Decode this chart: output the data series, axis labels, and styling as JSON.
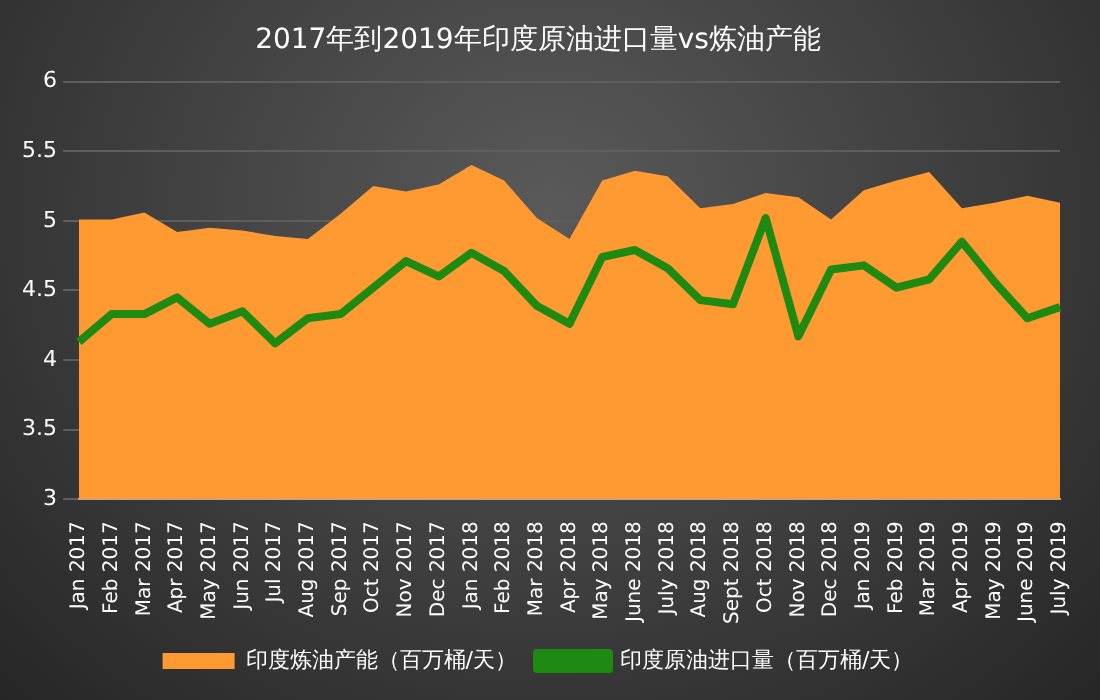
{
  "chart_data": {
    "type": "line",
    "title": "2017年到2019年印度原油进口量vs炼油产能",
    "categories": [
      "Jan 2017",
      "Feb 2017",
      "Mar 2017",
      "Apr 2017",
      "May 2017",
      "Jun 2017",
      "Jul 2017",
      "Aug 2017",
      "Sep 2017",
      "Oct 2017",
      "Nov 2017",
      "Dec 2017",
      "Jan 2018",
      "Feb 2018",
      "Mar 2018",
      "Apr 2018",
      "May 2018",
      "June 2018",
      "July 2018",
      "Aug 2018",
      "Sept 2018",
      "Oct 2018",
      "Nov 2018",
      "Dec 2018",
      "Jan 2019",
      "Feb 2019",
      "Mar 2019",
      "Apr 2019",
      "May 2019",
      "June 2019",
      "July 2019"
    ],
    "series": [
      {
        "name": "印度炼油产能（百万桶/天）",
        "type": "area",
        "color": "#ff9a33",
        "values": [
          5.01,
          5.01,
          5.06,
          4.92,
          4.95,
          4.93,
          4.89,
          4.87,
          5.05,
          5.25,
          5.21,
          5.26,
          5.4,
          5.29,
          5.02,
          4.87,
          5.29,
          5.36,
          5.32,
          5.09,
          5.12,
          5.2,
          5.17,
          5.01,
          5.22,
          5.29,
          5.35,
          5.09,
          5.13,
          5.18,
          5.13
        ]
      },
      {
        "name": "印度原油进口量（百万桶/天）",
        "type": "line",
        "color": "#1e8a12",
        "values": [
          4.13,
          4.33,
          4.33,
          4.45,
          4.26,
          4.35,
          4.12,
          4.3,
          4.33,
          4.52,
          4.71,
          4.6,
          4.77,
          4.64,
          4.39,
          4.26,
          4.74,
          4.79,
          4.66,
          4.43,
          4.4,
          5.02,
          4.17,
          4.65,
          4.68,
          4.52,
          4.58,
          4.85,
          4.56,
          4.3,
          4.38
        ]
      }
    ],
    "ylim": [
      3,
      6
    ],
    "yticks": [
      3,
      3.5,
      4,
      4.5,
      5,
      5.5,
      6
    ],
    "grid": "y",
    "legend": "bottom",
    "marker": "none",
    "line_style": "solid"
  }
}
